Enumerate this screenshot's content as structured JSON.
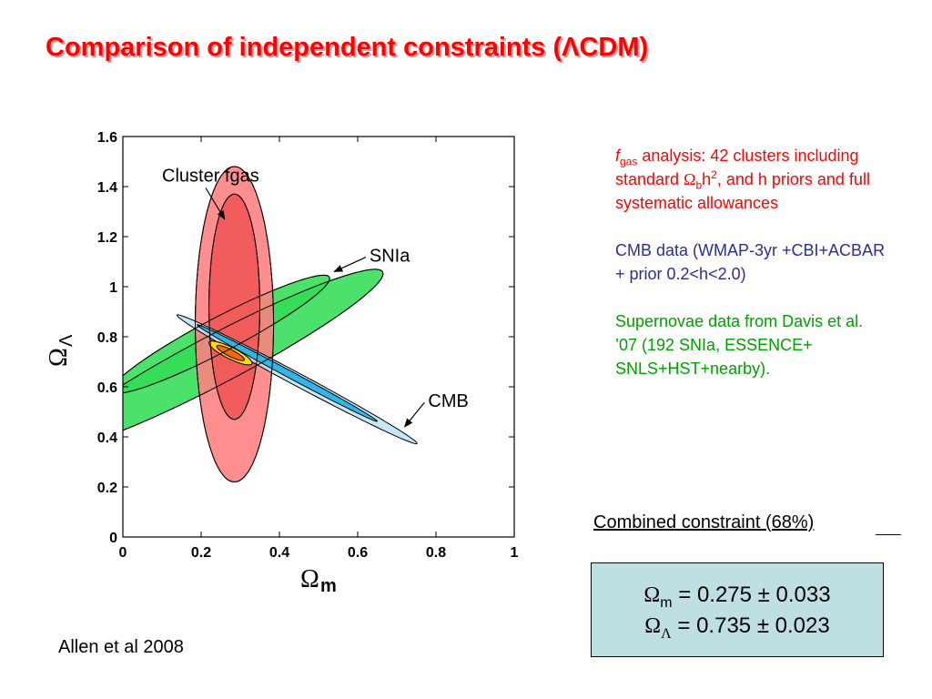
{
  "slide": {
    "title": "Comparison of independent constraints  (ΛCDM)",
    "citation": "Allen et al 2008"
  },
  "notes": {
    "fgas": {
      "f": "f",
      "f_sub": "gas",
      "text1": " analysis: 42 clusters including standard ",
      "omega": "Ω",
      "omega_sub": "b",
      "h": "h",
      "h_sup": "2",
      "text2": ", and h priors and full systematic allowances",
      "color": "#ff0000"
    },
    "cmb": {
      "text": "CMB data (WMAP-3yr +CBI+ACBAR + prior 0.2<h<2.0)",
      "color": "#2b2f95"
    },
    "snia": {
      "text": "Supernovae data from Davis et al. ’07 (192 SNIa, ESSENCE+ SNLS+HST+nearby).",
      "color": "#00a000"
    }
  },
  "combined": {
    "label": "Combined constraint (68%)",
    "omega_m": {
      "symbol": "Ω",
      "sub": "m",
      "value": " = 0.275 ± 0.033"
    },
    "omega_l": {
      "symbol": "Ω",
      "sub": "Λ",
      "value": " = 0.735 ± 0.023"
    }
  },
  "chart_data": {
    "type": "contour",
    "xlabel": {
      "symbol": "Ω",
      "sub": "m"
    },
    "ylabel": {
      "symbol": "Ω",
      "sub": "Λ"
    },
    "xlim": [
      0,
      1
    ],
    "ylim": [
      0,
      1.6
    ],
    "xticks": [
      "0",
      "0.2",
      "0.4",
      "0.6",
      "0.8",
      "1"
    ],
    "yticks": [
      "0",
      "0.2",
      "0.4",
      "0.6",
      "0.8",
      "1",
      "1.2",
      "1.4",
      "1.6"
    ],
    "series": [
      {
        "name": "SNIa",
        "color": "#33dd55",
        "inner_color": "#33dd55",
        "outer": {
          "center": [
            0.24,
            0.71
          ],
          "angle_deg": 40,
          "a": 0.55,
          "b": 0.085
        },
        "inner": {
          "center": [
            0.25,
            0.81
          ],
          "angle_deg": 40,
          "a": 0.36,
          "b": 0.06
        }
      },
      {
        "name": "Cluster fgas",
        "color": "#ff8080",
        "inner_color": "#f05555",
        "outer": {
          "center": [
            0.285,
            0.85
          ],
          "angle_deg": 0,
          "a": 0.1,
          "b": 0.63
        },
        "inner": {
          "center": [
            0.285,
            0.92
          ],
          "angle_deg": 0,
          "a": 0.065,
          "b": 0.45
        }
      },
      {
        "name": "CMB",
        "color": "#bfe4f5",
        "inner_color": "#1ab0e8",
        "outer": {
          "center": [
            0.445,
            0.63
          ],
          "angle_deg": -40,
          "a": 0.4,
          "b": 0.022
        },
        "inner": {
          "center": [
            0.42,
            0.655
          ],
          "angle_deg": -40,
          "a": 0.3,
          "b": 0.012
        }
      },
      {
        "name": "Combined",
        "color": "#ffee00",
        "inner_color": "#ff5500",
        "outer": {
          "center": [
            0.275,
            0.735
          ],
          "angle_deg": -40,
          "a": 0.07,
          "b": 0.02
        },
        "inner": {
          "center": [
            0.275,
            0.735
          ],
          "angle_deg": -40,
          "a": 0.045,
          "b": 0.012
        }
      }
    ],
    "annotations": [
      {
        "text": "Cluster fgas",
        "text_at": [
          0.1,
          1.42
        ],
        "arrow_to": [
          0.26,
          1.27
        ]
      },
      {
        "text": "SNIa",
        "text_at": [
          0.63,
          1.1
        ],
        "arrow_to": [
          0.54,
          1.06
        ]
      },
      {
        "text": "CMB",
        "text_at": [
          0.78,
          0.52
        ],
        "arrow_to": [
          0.72,
          0.44
        ]
      }
    ]
  }
}
